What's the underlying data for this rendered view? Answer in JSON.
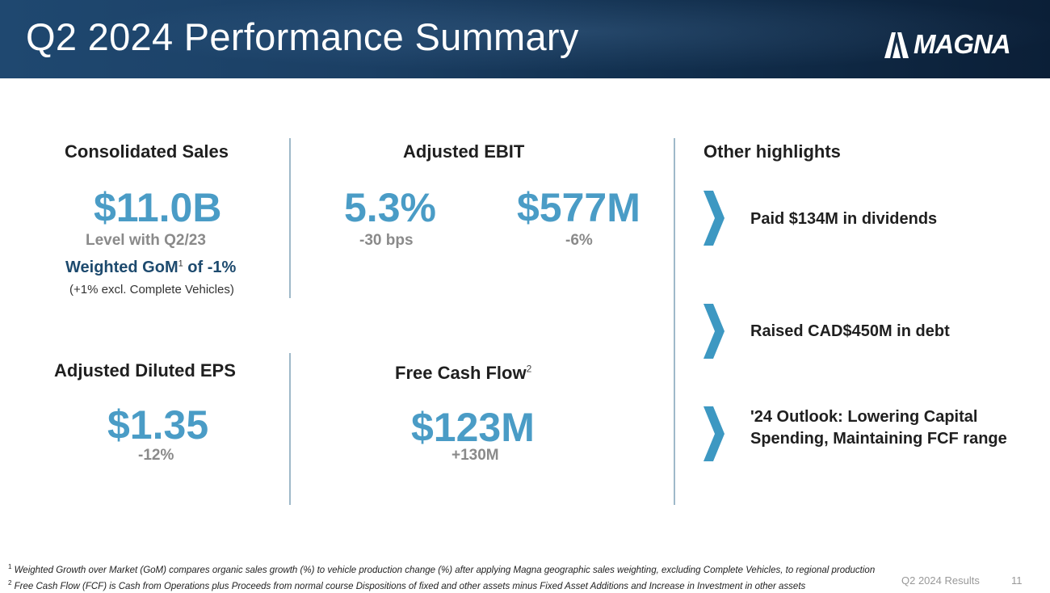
{
  "header": {
    "title": "Q2 2024 Performance Summary",
    "logo_text": "MAGNA"
  },
  "consolidated_sales": {
    "title": "Consolidated Sales",
    "value": "$11.0B",
    "change": "Level with Q2/23",
    "gom_label": "Weighted GoM",
    "gom_sup": "1",
    "gom_value": " of -1%",
    "note": "(+1% excl. Complete Vehicles)"
  },
  "adjusted_ebit": {
    "title": "Adjusted EBIT",
    "margin_value": "5.3%",
    "margin_change": "-30 bps",
    "amount_value": "$577M",
    "amount_change": "-6%"
  },
  "adjusted_eps": {
    "title": "Adjusted Diluted EPS",
    "value": "$1.35",
    "change": "-12%"
  },
  "free_cash_flow": {
    "title": "Free Cash Flow",
    "sup": "2",
    "value": "$123M",
    "change": "+130M"
  },
  "other_highlights": {
    "title": "Other highlights",
    "items": [
      {
        "line1": "Paid $134M in dividends",
        "line2": ""
      },
      {
        "line1": "Raised CAD$450M in debt",
        "line2": ""
      },
      {
        "line1": "'24 Outlook: Lowering Capital",
        "line2": "Spending, Maintaining FCF range"
      }
    ]
  },
  "footnotes": {
    "fn1_num": "1",
    "fn1": " Weighted Growth over Market (GoM) compares organic sales growth (%) to vehicle production change (%) after applying Magna geographic sales weighting, excluding Complete Vehicles, to regional production",
    "fn2_num": "2",
    "fn2": " Free Cash Flow (FCF) is Cash from Operations plus Proceeds from normal course Dispositions of fixed and other assets minus Fixed Asset Additions and Increase in Investment in other assets"
  },
  "footer": {
    "deck_label": "Q2 2024 Results",
    "page_number": "11"
  },
  "colors": {
    "accent": "#4a9cc6",
    "dark_blue": "#1d4a6e",
    "chevron": "#3d98c2"
  }
}
